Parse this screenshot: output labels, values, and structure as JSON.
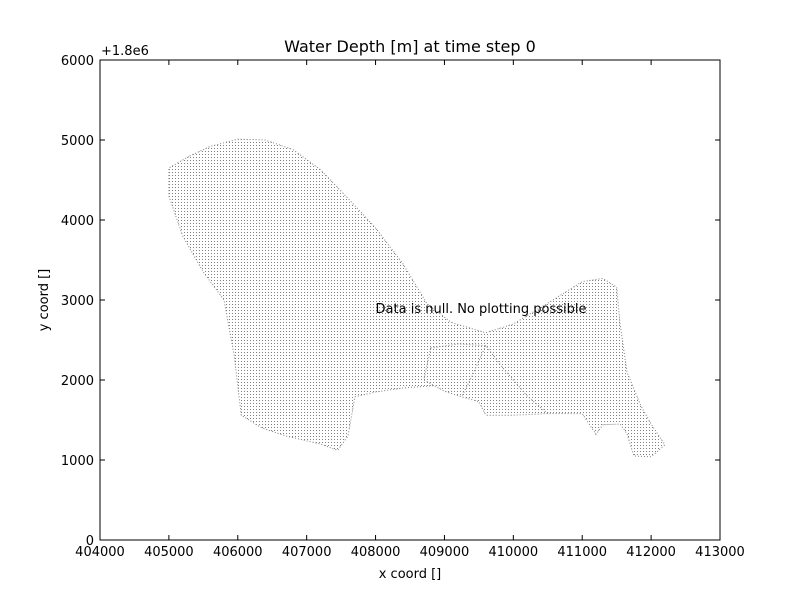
{
  "chart_data": {
    "type": "scatter",
    "title": "Water Depth [m] at time step 0",
    "xlabel": "x coord []",
    "ylabel": "y coord []",
    "xlim": [
      404000,
      413000
    ],
    "ylim": [
      0,
      6000
    ],
    "y_offset_label": "+1.8e6",
    "x_ticks": [
      404000,
      405000,
      406000,
      407000,
      408000,
      409000,
      410000,
      411000,
      412000,
      413000
    ],
    "y_ticks": [
      0,
      1000,
      2000,
      3000,
      4000,
      5000,
      6000
    ],
    "annotation": {
      "text": "Data is null. No plotting possible",
      "x": 408000,
      "y": 2900
    },
    "grid": false,
    "legend": "none",
    "marker_color": "#7f7f7f",
    "mesh_outline": [
      [
        405300,
        4800
      ],
      [
        405600,
        4920
      ],
      [
        406000,
        5010
      ],
      [
        406400,
        5000
      ],
      [
        406800,
        4880
      ],
      [
        407200,
        4630
      ],
      [
        407600,
        4270
      ],
      [
        408000,
        3900
      ],
      [
        408400,
        3450
      ],
      [
        408750,
        2950
      ],
      [
        409100,
        2720
      ],
      [
        409600,
        2590
      ],
      [
        410000,
        2700
      ],
      [
        410500,
        2960
      ],
      [
        411000,
        3230
      ],
      [
        411300,
        3270
      ],
      [
        411500,
        3160
      ],
      [
        411550,
        2700
      ],
      [
        411650,
        2100
      ],
      [
        411850,
        1680
      ],
      [
        412000,
        1450
      ],
      [
        412200,
        1190
      ],
      [
        412000,
        1040
      ],
      [
        411750,
        1050
      ],
      [
        411650,
        1330
      ],
      [
        411550,
        1450
      ],
      [
        411300,
        1440
      ],
      [
        411200,
        1320
      ],
      [
        411000,
        1580
      ],
      [
        410500,
        1580
      ],
      [
        410000,
        1560
      ],
      [
        409600,
        1560
      ],
      [
        409500,
        1730
      ],
      [
        409250,
        1790
      ],
      [
        409000,
        1860
      ],
      [
        408850,
        1930
      ],
      [
        408400,
        1900
      ],
      [
        408000,
        1850
      ],
      [
        407700,
        1790
      ],
      [
        407600,
        1300
      ],
      [
        407450,
        1120
      ],
      [
        407200,
        1200
      ],
      [
        406700,
        1300
      ],
      [
        406350,
        1400
      ],
      [
        406050,
        1560
      ],
      [
        405950,
        2300
      ],
      [
        405800,
        3000
      ],
      [
        405500,
        3350
      ],
      [
        405200,
        3800
      ],
      [
        405000,
        4300
      ],
      [
        405000,
        4650
      ]
    ],
    "sub_boundaries": [
      [
        [
          408800,
          2400
        ],
        [
          409200,
          2450
        ],
        [
          409600,
          2430
        ],
        [
          409850,
          2150
        ],
        [
          410200,
          1800
        ],
        [
          410500,
          1580
        ]
      ],
      [
        [
          408800,
          2400
        ],
        [
          408700,
          2000
        ],
        [
          408850,
          1930
        ]
      ],
      [
        [
          409600,
          2430
        ],
        [
          409400,
          2050
        ],
        [
          409250,
          1790
        ]
      ]
    ]
  }
}
